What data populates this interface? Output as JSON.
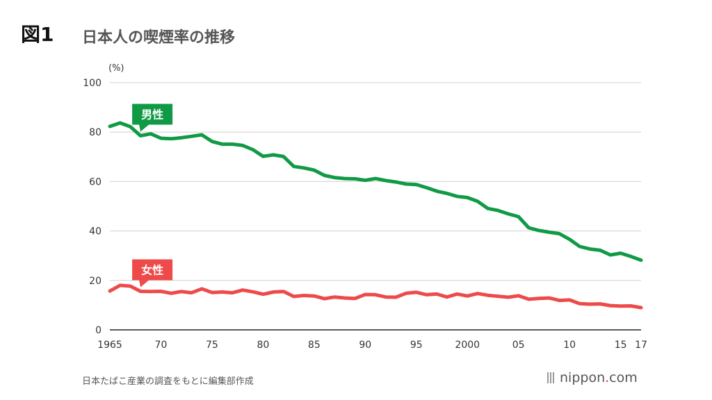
{
  "figure_label": "図1",
  "title": "日本人の喫煙率の推移",
  "source": "日本たばこ産業の調査をもとに編集部作成",
  "logo": {
    "text_main": "nippon",
    "text_accent": ".",
    "text_end": "com"
  },
  "colors": {
    "male": "#119a45",
    "female": "#ee4a4a",
    "grid": "#d0d0d0",
    "axis": "#222222"
  },
  "chart_data": {
    "type": "line",
    "unit_label": "(%)",
    "ylim": [
      0,
      100
    ],
    "yticks": [
      0,
      20,
      40,
      60,
      80,
      100
    ],
    "xlim": [
      1965,
      2017
    ],
    "xticks": [
      {
        "value": 1965,
        "label": "1965"
      },
      {
        "value": 1970,
        "label": "70"
      },
      {
        "value": 1975,
        "label": "75"
      },
      {
        "value": 1980,
        "label": "80"
      },
      {
        "value": 1985,
        "label": "85"
      },
      {
        "value": 1990,
        "label": "90"
      },
      {
        "value": 1995,
        "label": "95"
      },
      {
        "value": 2000,
        "label": "2000"
      },
      {
        "value": 2005,
        "label": "05"
      },
      {
        "value": 2010,
        "label": "10"
      },
      {
        "value": 2015,
        "label": "15"
      },
      {
        "value": 2017,
        "label": "17"
      }
    ],
    "grid": true,
    "x": [
      1965,
      1966,
      1967,
      1968,
      1969,
      1970,
      1971,
      1972,
      1973,
      1974,
      1975,
      1976,
      1977,
      1978,
      1979,
      1980,
      1981,
      1982,
      1983,
      1984,
      1985,
      1986,
      1987,
      1988,
      1989,
      1990,
      1991,
      1992,
      1993,
      1994,
      1995,
      1996,
      1997,
      1998,
      1999,
      2000,
      2001,
      2002,
      2003,
      2004,
      2005,
      2006,
      2007,
      2008,
      2009,
      2010,
      2011,
      2012,
      2013,
      2014,
      2015,
      2016,
      2017
    ],
    "series": [
      {
        "name": "男性",
        "color_key": "male",
        "label_x": 1968,
        "values": [
          82.3,
          83.7,
          82.2,
          78.5,
          79.3,
          77.5,
          77.3,
          77.7,
          78.3,
          78.9,
          76.2,
          75.1,
          75.1,
          74.6,
          72.9,
          70.2,
          70.8,
          70.1,
          66.1,
          65.5,
          64.6,
          62.5,
          61.6,
          61.2,
          61.1,
          60.5,
          61.2,
          60.4,
          59.8,
          59.0,
          58.8,
          57.5,
          56.1,
          55.2,
          54.0,
          53.5,
          52.0,
          49.1,
          48.3,
          46.9,
          45.8,
          41.3,
          40.2,
          39.5,
          38.9,
          36.6,
          33.7,
          32.7,
          32.2,
          30.3,
          31.0,
          29.7,
          28.2
        ]
      },
      {
        "name": "女性",
        "color_key": "female",
        "label_x": 1968,
        "values": [
          15.7,
          18.0,
          17.7,
          15.6,
          15.5,
          15.6,
          14.8,
          15.5,
          15.0,
          16.6,
          15.1,
          15.3,
          15.0,
          16.1,
          15.4,
          14.4,
          15.3,
          15.5,
          13.5,
          13.9,
          13.7,
          12.6,
          13.3,
          12.9,
          12.7,
          14.3,
          14.2,
          13.3,
          13.2,
          14.8,
          15.2,
          14.2,
          14.5,
          13.3,
          14.5,
          13.7,
          14.7,
          14.0,
          13.6,
          13.2,
          13.8,
          12.4,
          12.7,
          12.9,
          11.9,
          12.1,
          10.6,
          10.4,
          10.5,
          9.8,
          9.6,
          9.7,
          9.0
        ]
      }
    ]
  }
}
